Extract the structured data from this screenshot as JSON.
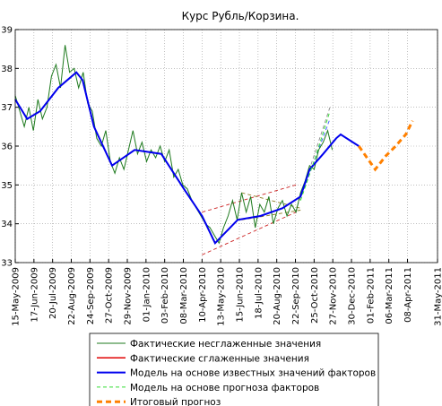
{
  "chart_data": {
    "type": "line",
    "title": "Курс Рубль/Корзина.",
    "xlim": [
      0,
      746
    ],
    "ylim": [
      33,
      39
    ],
    "yticks": [
      33,
      34,
      35,
      36,
      37,
      38,
      39
    ],
    "xticks": [
      {
        "value": 0,
        "label": "15-May-2009"
      },
      {
        "value": 33,
        "label": "17-Jun-2009"
      },
      {
        "value": 66,
        "label": "20-Jul-2009"
      },
      {
        "value": 99,
        "label": "22-Aug-2009"
      },
      {
        "value": 132,
        "label": "24-Sep-2009"
      },
      {
        "value": 165,
        "label": "27-Oct-2009"
      },
      {
        "value": 198,
        "label": "29-Nov-2009"
      },
      {
        "value": 231,
        "label": "01-Jan-2010"
      },
      {
        "value": 264,
        "label": "03-Feb-2010"
      },
      {
        "value": 297,
        "label": "08-Mar-2010"
      },
      {
        "value": 330,
        "label": "10-Apr-2010"
      },
      {
        "value": 363,
        "label": "13-May-2010"
      },
      {
        "value": 396,
        "label": "15-Jun-2010"
      },
      {
        "value": 429,
        "label": "18-Jul-2010"
      },
      {
        "value": 462,
        "label": "20-Aug-2010"
      },
      {
        "value": 495,
        "label": "22-Sep-2010"
      },
      {
        "value": 528,
        "label": "25-Oct-2010"
      },
      {
        "value": 561,
        "label": "27-Nov-2010"
      },
      {
        "value": 594,
        "label": "30-Dec-2010"
      },
      {
        "value": 627,
        "label": "01-Feb-2011"
      },
      {
        "value": 660,
        "label": "06-Mar-2011"
      },
      {
        "value": 693,
        "label": "08-Apr-2011"
      },
      {
        "value": 746,
        "label": "31-May-2011"
      }
    ],
    "grid": true,
    "legend": "bottom",
    "series": [
      {
        "name": "Фактические несглаженные значения",
        "color": "#1e7a1e",
        "width": 1,
        "dash": false,
        "x": [
          0,
          8,
          16,
          24,
          32,
          40,
          48,
          56,
          64,
          72,
          80,
          88,
          96,
          104,
          112,
          120,
          128,
          136,
          144,
          152,
          160,
          168,
          176,
          184,
          192,
          200,
          208,
          216,
          224,
          232,
          240,
          248,
          256,
          264,
          272,
          280,
          288,
          296,
          304,
          312,
          320,
          328,
          336,
          344,
          352,
          360,
          368,
          376,
          384,
          392,
          400,
          408,
          416,
          424,
          432,
          440,
          448,
          456,
          464,
          472,
          480,
          488,
          496,
          504,
          512,
          520,
          528,
          536,
          544,
          552,
          560
        ],
        "values": [
          37.3,
          36.9,
          36.5,
          37.0,
          36.4,
          37.2,
          36.7,
          37.0,
          37.8,
          38.1,
          37.5,
          38.6,
          37.9,
          38.0,
          37.5,
          37.9,
          37.1,
          36.9,
          36.2,
          36.0,
          36.4,
          35.6,
          35.3,
          35.7,
          35.4,
          35.9,
          36.4,
          35.8,
          36.1,
          35.6,
          35.9,
          35.7,
          36.0,
          35.6,
          35.9,
          35.2,
          35.4,
          35.0,
          34.9,
          34.6,
          34.4,
          34.2,
          34.0,
          33.9,
          33.7,
          33.5,
          33.9,
          34.2,
          34.6,
          34.1,
          34.8,
          34.3,
          34.7,
          33.9,
          34.5,
          34.3,
          34.7,
          34.0,
          34.4,
          34.6,
          34.2,
          34.5,
          34.3,
          34.8,
          35.1,
          35.5,
          35.4,
          35.9,
          36.1,
          36.4,
          35.9
        ]
      },
      {
        "name": "Фактические сглаженные значения",
        "color": "#e00000",
        "width": 1.5,
        "dash": false,
        "x": [
          0,
          21,
          44,
          76,
          108,
          119,
          139,
          171,
          211,
          258,
          298,
          330,
          353,
          393,
          433,
          472,
          504
        ],
        "values": [
          37.2,
          36.7,
          36.9,
          37.5,
          37.9,
          37.7,
          36.5,
          35.5,
          35.9,
          35.8,
          34.9,
          34.2,
          33.5,
          34.1,
          34.2,
          34.4,
          34.7
        ]
      },
      {
        "name": "Модель на основе известных значений факторов",
        "color": "#0000ee",
        "width": 2,
        "dash": false,
        "x": [
          0,
          21,
          44,
          76,
          108,
          119,
          139,
          171,
          211,
          258,
          298,
          330,
          353,
          393,
          433,
          472,
          504,
          520,
          544,
          567,
          575,
          607
        ],
        "values": [
          37.2,
          36.7,
          36.9,
          37.5,
          37.9,
          37.7,
          36.5,
          35.5,
          35.9,
          35.8,
          34.9,
          34.2,
          33.5,
          34.1,
          34.2,
          34.4,
          34.7,
          35.4,
          35.8,
          36.2,
          36.3,
          36.0
        ]
      },
      {
        "name": "Модель на основе прогноза факторов",
        "color": "#33dd33",
        "width": 1,
        "dash": true,
        "x": [
          504,
          530,
          556
        ],
        "values": [
          34.6,
          35.7,
          36.9
        ]
      },
      {
        "name": "Итоговый прогноз",
        "color": "#ff8000",
        "width": 3,
        "dash": true,
        "x": [
          607,
          636,
          655,
          672,
          690,
          702
        ],
        "values": [
          36.0,
          35.4,
          35.75,
          36.0,
          36.3,
          36.65
        ]
      }
    ],
    "guides": [
      {
        "color": "#cc2222",
        "x": [
          330,
          496
        ],
        "values": [
          33.2,
          34.3
        ]
      },
      {
        "color": "#cc2222",
        "x": [
          330,
          496
        ],
        "values": [
          34.3,
          35.0
        ]
      },
      {
        "color": "#8a7a20",
        "x": [
          400,
          504
        ],
        "values": [
          34.8,
          34.4
        ]
      },
      {
        "color": "#8a7a20",
        "x": [
          400,
          504
        ],
        "values": [
          34.1,
          34.35
        ]
      },
      {
        "color": "#3355ff",
        "x": [
          510,
          556
        ],
        "values": [
          34.9,
          36.7
        ]
      },
      {
        "color": "#888888",
        "x": [
          495,
          556
        ],
        "values": [
          34.3,
          37.0
        ]
      }
    ]
  }
}
